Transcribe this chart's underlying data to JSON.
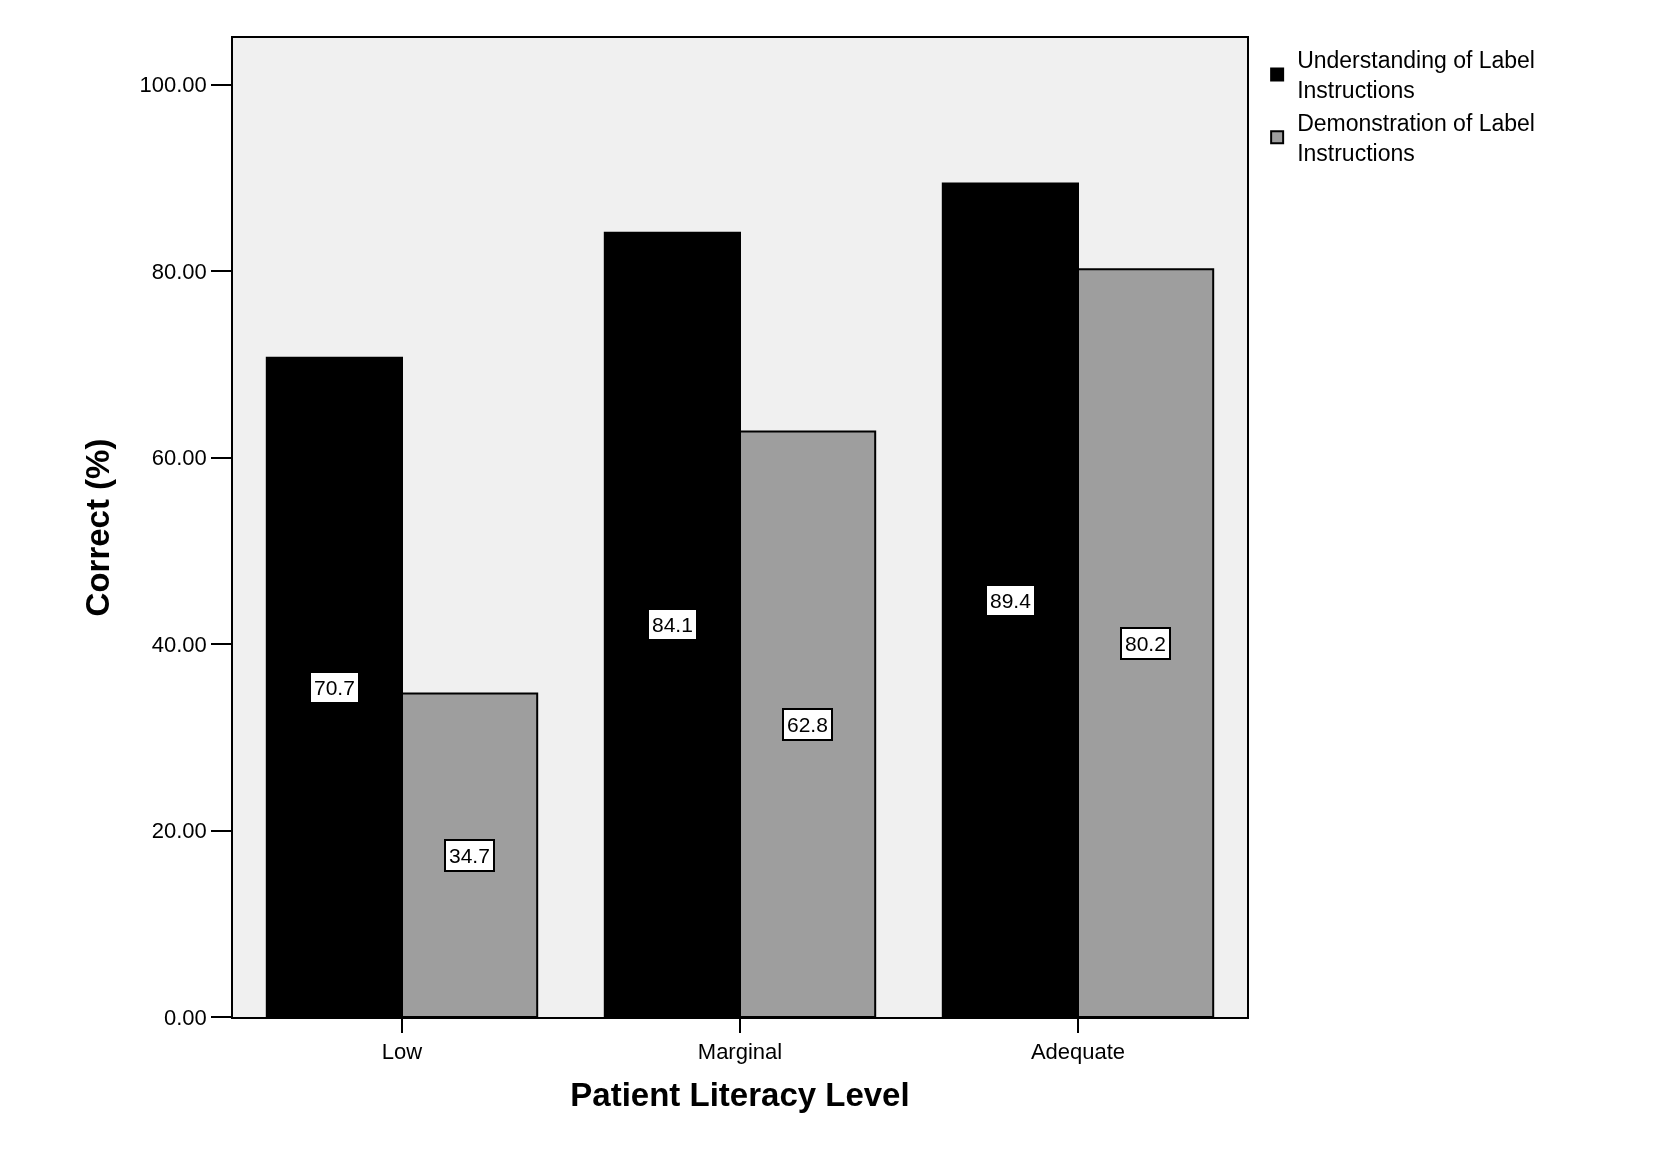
{
  "chart_data": {
    "type": "bar",
    "xlabel": "Patient Literacy Level",
    "ylabel": "Correct (%)",
    "categories": [
      "Low",
      "Marginal",
      "Adequate"
    ],
    "series": [
      {
        "name": "Understanding of Label Instructions",
        "color": "#000000",
        "values": [
          70.7,
          84.1,
          89.4
        ]
      },
      {
        "name": "Demonstration of Label Instructions",
        "color": "#9e9e9e",
        "values": [
          34.7,
          62.8,
          80.2
        ]
      }
    ],
    "ylim": [
      0,
      105
    ],
    "yticks": [
      {
        "value": 0,
        "label": "0.00"
      },
      {
        "value": 20,
        "label": "20.00"
      },
      {
        "value": 40,
        "label": "40.00"
      },
      {
        "value": 60,
        "label": "60.00"
      },
      {
        "value": 80,
        "label": "80.00"
      },
      {
        "value": 100,
        "label": "100.00"
      }
    ],
    "data_labels": true,
    "grid": false,
    "legend": "top right"
  }
}
